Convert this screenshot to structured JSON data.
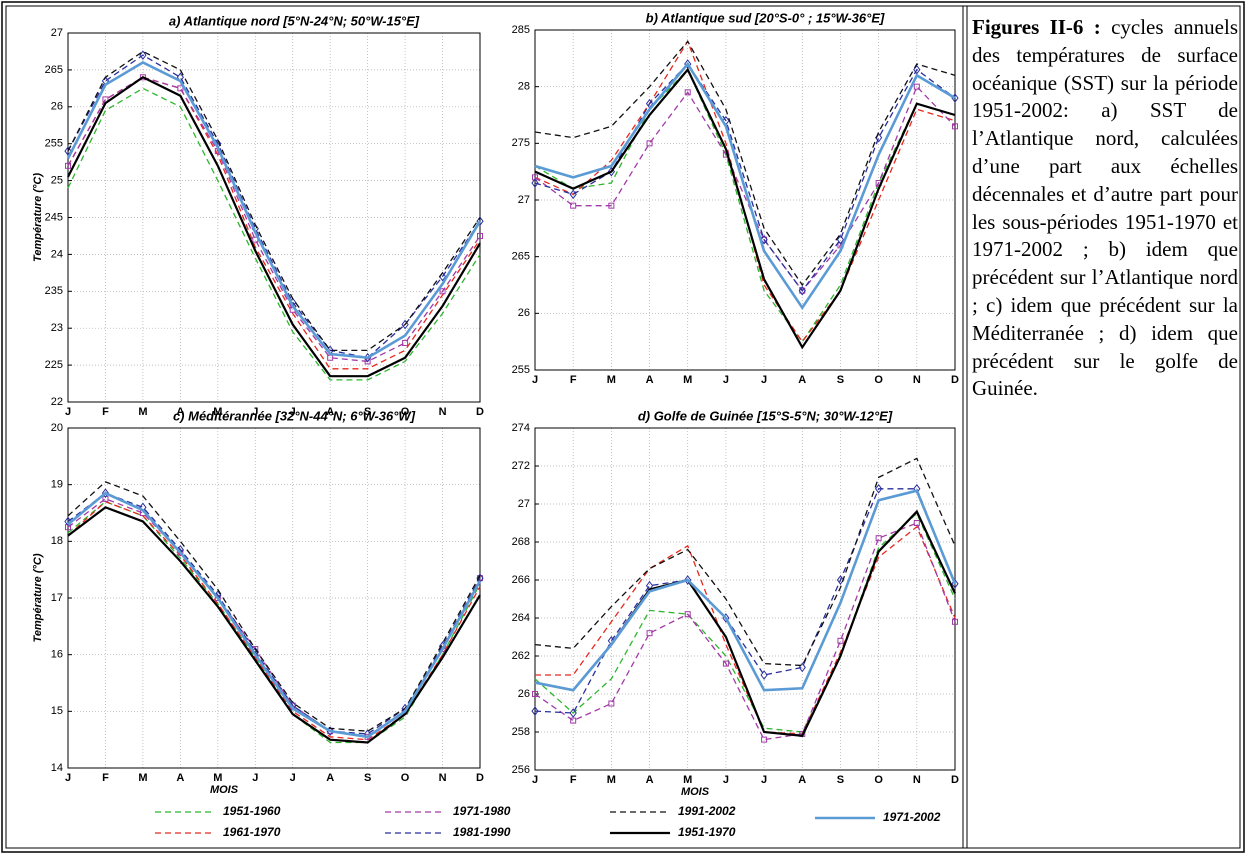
{
  "chart_data": [
    {
      "type": "line",
      "title": "a) Atlantique nord [5°N-24°N; 50°W-15°E]",
      "ylabel": "Température (°C)",
      "grid": true,
      "categories": [
        "J",
        "F",
        "M",
        "A",
        "M",
        "J",
        "J",
        "A",
        "S",
        "O",
        "N",
        "D"
      ],
      "ylim": [
        22,
        27
      ],
      "yticks": [
        22,
        {
          "value": 22.5,
          "label": "225"
        },
        23,
        {
          "value": 23.5,
          "label": "235"
        },
        24,
        {
          "value": 24.5,
          "label": "245"
        },
        25,
        {
          "value": 25.5,
          "label": "255"
        },
        26,
        {
          "value": 26.5,
          "label": "265"
        },
        27
      ],
      "series": [
        {
          "name": "1951-1960",
          "color": "#2fb52f",
          "style": "dashed",
          "width": 1.3,
          "values": [
            24.9,
            25.95,
            26.25,
            26.0,
            25.0,
            23.95,
            22.95,
            22.3,
            22.3,
            22.55,
            23.2,
            24.0
          ]
        },
        {
          "name": "1961-1970",
          "color": "#e8281e",
          "style": "dashed",
          "width": 1.3,
          "values": [
            25.2,
            26.1,
            26.4,
            26.25,
            25.35,
            24.1,
            23.2,
            22.45,
            22.45,
            22.7,
            23.45,
            24.2
          ]
        },
        {
          "name": "1971-1980",
          "color": "#a23aa8",
          "style": "dashed",
          "width": 1.3,
          "marker": "square",
          "values": [
            25.2,
            26.1,
            26.4,
            26.25,
            25.4,
            24.2,
            23.25,
            22.6,
            22.55,
            22.8,
            23.5,
            24.25
          ]
        },
        {
          "name": "1981-1990",
          "color": "#2a2f9e",
          "style": "dashed",
          "width": 1.3,
          "marker": "diamond",
          "values": [
            25.4,
            26.35,
            26.7,
            26.4,
            25.5,
            24.35,
            23.35,
            22.7,
            22.6,
            23.05,
            23.7,
            24.45
          ]
        },
        {
          "name": "1991-2002",
          "color": "#111111",
          "style": "dashed",
          "width": 1.3,
          "values": [
            25.4,
            26.4,
            26.75,
            26.5,
            25.55,
            24.4,
            23.4,
            22.7,
            22.7,
            23.05,
            23.75,
            24.5
          ]
        },
        {
          "name": "1951-1970",
          "color": "#000000",
          "style": "solid",
          "width": 2.2,
          "values": [
            25.05,
            26.05,
            26.4,
            26.15,
            25.2,
            24.05,
            23.05,
            22.35,
            22.35,
            22.6,
            23.3,
            24.15
          ]
        },
        {
          "name": "1971-2002",
          "color": "#5b9bd5",
          "style": "solid",
          "width": 2.6,
          "values": [
            25.3,
            26.3,
            26.6,
            26.35,
            25.45,
            24.3,
            23.3,
            22.65,
            22.6,
            22.9,
            23.6,
            24.45
          ]
        }
      ]
    },
    {
      "type": "line",
      "title": "b) Atlantique sud [20°S-0° ; 15°W-36°E]",
      "grid": true,
      "categories": [
        "J",
        "F",
        "M",
        "A",
        "M",
        "J",
        "J",
        "A",
        "S",
        "O",
        "N",
        "D"
      ],
      "ylim": [
        25.5,
        28.5
      ],
      "yticks": [
        {
          "value": 25.5,
          "label": "255"
        },
        26,
        {
          "value": 26.5,
          "label": "265"
        },
        27,
        {
          "value": 27.5,
          "label": "275"
        },
        28,
        {
          "value": 28.5,
          "label": "285"
        }
      ],
      "series": [
        {
          "values": [
            27.3,
            27.1,
            27.15,
            27.8,
            28.15,
            27.4,
            26.2,
            25.75,
            26.25,
            27.15,
            27.85,
            27.75
          ]
        },
        {
          "values": [
            27.2,
            27.05,
            27.35,
            27.85,
            28.4,
            27.5,
            26.25,
            25.75,
            26.2,
            27.0,
            27.8,
            27.7
          ]
        },
        {
          "values": [
            27.2,
            26.95,
            26.95,
            27.5,
            27.95,
            27.4,
            26.65,
            26.2,
            26.6,
            27.15,
            28.0,
            27.65
          ]
        },
        {
          "values": [
            27.15,
            27.05,
            27.25,
            27.85,
            28.2,
            27.7,
            26.65,
            26.2,
            26.65,
            27.55,
            28.15,
            27.9
          ]
        },
        {
          "values": [
            27.6,
            27.55,
            27.65,
            28.0,
            28.4,
            27.8,
            26.75,
            26.25,
            26.7,
            27.6,
            28.2,
            28.1
          ]
        },
        {
          "values": [
            27.25,
            27.1,
            27.25,
            27.75,
            28.15,
            27.45,
            26.3,
            25.7,
            26.2,
            27.1,
            27.85,
            27.75
          ]
        },
        {
          "values": [
            27.3,
            27.2,
            27.3,
            27.8,
            28.2,
            27.65,
            26.55,
            26.05,
            26.55,
            27.4,
            28.1,
            27.9
          ]
        }
      ]
    },
    {
      "type": "line",
      "title": "c) Méditérannée [32°N-44°N; 6°W-36°W]",
      "ylabel": "Température (°C)",
      "xlabel": "MOIS",
      "grid": true,
      "categories": [
        "J",
        "F",
        "M",
        "A",
        "M",
        "J",
        "J",
        "A",
        "S",
        "O",
        "N",
        "D"
      ],
      "ylim": [
        14,
        20
      ],
      "yticks": [
        14,
        15,
        16,
        17,
        18,
        19,
        20
      ],
      "series": [
        {
          "values": [
            18.15,
            18.7,
            18.45,
            17.7,
            16.9,
            15.95,
            14.95,
            14.45,
            14.45,
            14.9,
            16.0,
            17.25
          ]
        },
        {
          "values": [
            18.1,
            18.7,
            18.45,
            17.75,
            16.9,
            15.95,
            15.0,
            14.55,
            14.5,
            14.95,
            16.0,
            17.2
          ]
        },
        {
          "values": [
            18.25,
            18.75,
            18.5,
            17.8,
            17.0,
            16.1,
            15.1,
            14.65,
            14.55,
            15.0,
            16.1,
            17.35
          ]
        },
        {
          "values": [
            18.35,
            18.85,
            18.6,
            17.85,
            17.05,
            16.05,
            15.1,
            14.65,
            14.6,
            15.05,
            16.15,
            17.35
          ]
        },
        {
          "values": [
            18.45,
            19.05,
            18.8,
            18.0,
            17.15,
            16.1,
            15.15,
            14.7,
            14.65,
            15.05,
            16.2,
            17.4
          ]
        },
        {
          "values": [
            18.1,
            18.6,
            18.35,
            17.65,
            16.85,
            15.9,
            14.95,
            14.5,
            14.45,
            14.95,
            15.95,
            17.05
          ]
        },
        {
          "values": [
            18.3,
            18.85,
            18.55,
            17.8,
            17.0,
            16.0,
            15.05,
            14.65,
            14.55,
            15.0,
            16.1,
            17.3
          ]
        }
      ]
    },
    {
      "type": "line",
      "title": "d) Golfe de Guinée [15°S-5°N; 30°W-12°E]",
      "xlabel": "MOIS",
      "grid": true,
      "categories": [
        "J",
        "F",
        "M",
        "A",
        "M",
        "J",
        "J",
        "A",
        "S",
        "O",
        "N",
        "D"
      ],
      "ylim": [
        25.6,
        27.4
      ],
      "yticks": [
        {
          "value": 25.6,
          "label": "256"
        },
        {
          "value": 25.8,
          "label": "258"
        },
        26,
        {
          "value": 26.2,
          "label": "262"
        },
        {
          "value": 26.4,
          "label": "264"
        },
        {
          "value": 26.6,
          "label": "266"
        },
        {
          "value": 26.8,
          "label": "268"
        },
        27,
        {
          "value": 27.2,
          "label": "272"
        },
        {
          "value": 27.4,
          "label": "274"
        }
      ],
      "series": [
        {
          "values": [
            26.08,
            25.9,
            26.08,
            26.44,
            26.42,
            26.2,
            25.82,
            25.8,
            26.2,
            26.77,
            26.95,
            26.5
          ]
        },
        {
          "values": [
            26.1,
            26.1,
            26.38,
            26.66,
            26.78,
            26.26,
            25.8,
            25.79,
            26.22,
            26.72,
            26.88,
            26.4
          ]
        },
        {
          "values": [
            26.0,
            25.86,
            25.95,
            26.32,
            26.42,
            26.16,
            25.76,
            25.79,
            26.28,
            26.82,
            26.9,
            26.38
          ]
        },
        {
          "values": [
            25.91,
            25.9,
            26.28,
            26.57,
            26.6,
            26.4,
            26.1,
            26.14,
            26.6,
            27.08,
            27.08,
            26.58
          ]
        },
        {
          "values": [
            26.26,
            26.24,
            26.46,
            26.66,
            26.76,
            26.5,
            26.16,
            26.15,
            26.56,
            27.14,
            27.24,
            26.78
          ]
        },
        {
          "values": [
            26.06,
            26.02,
            26.26,
            26.55,
            26.6,
            26.3,
            25.8,
            25.78,
            26.2,
            26.75,
            26.96,
            26.53
          ]
        },
        {
          "values": [
            26.06,
            26.02,
            26.26,
            26.54,
            26.6,
            26.4,
            26.02,
            26.03,
            26.48,
            27.02,
            27.07,
            26.58
          ]
        }
      ]
    }
  ],
  "caption": {
    "label": "Figures II-6 :",
    "text": "cycles annuels des températures de surface océanique (SST) sur la période 1951-2002: a) SST de l’Atlantique nord, calculées d’une part aux échelles décennales et d’autre part pour les sous-périodes 1951-1970 et 1971-2002 ; b) idem que précédent sur l’Atlantique nord ; c) idem que précédent sur la Méditerranée ; d) idem que précédent sur le golfe de Guinée."
  }
}
